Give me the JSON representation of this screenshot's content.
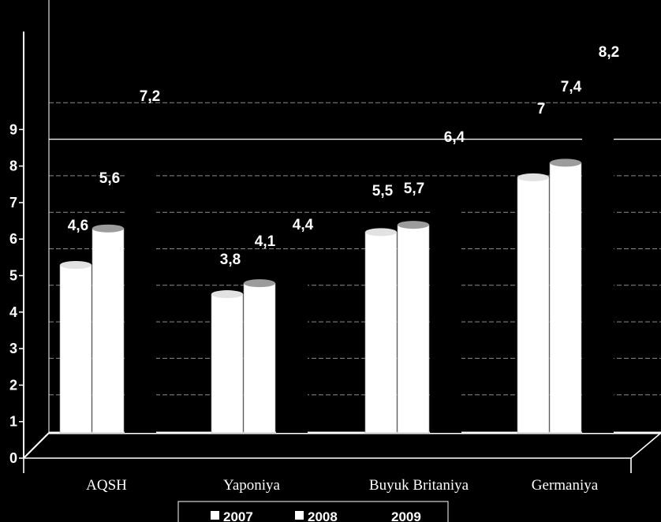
{
  "chart_data": {
    "type": "bar",
    "categories": [
      "AQSH",
      "Yaponiya",
      "Buyuk Britaniya",
      "Germaniya"
    ],
    "series": [
      {
        "name": "2007",
        "values": [
          4.6,
          3.8,
          5.5,
          7
        ]
      },
      {
        "name": "2008",
        "values": [
          5.6,
          4.1,
          5.7,
          7.4
        ]
      },
      {
        "name": "2009",
        "values": [
          7.2,
          4.4,
          6.4,
          8.2
        ]
      }
    ],
    "value_labels": [
      [
        "4,6",
        "3,8",
        "5,5",
        "7"
      ],
      [
        "5,6",
        "4,1",
        "5,7",
        "7,4"
      ],
      [
        "7,2",
        "4,4",
        "6,4",
        "8,2"
      ]
    ],
    "yticks": [
      "0",
      "1",
      "2",
      "3",
      "4",
      "5",
      "6",
      "7",
      "8",
      "9"
    ],
    "ylim": [
      0,
      9
    ],
    "grid": true,
    "legend_position": "bottom",
    "colors": {
      "background": "#000000",
      "bar": "#ffffff",
      "bar_top": "#e2e2e2",
      "grid": "#ffffff",
      "text": "#ffffff"
    }
  }
}
